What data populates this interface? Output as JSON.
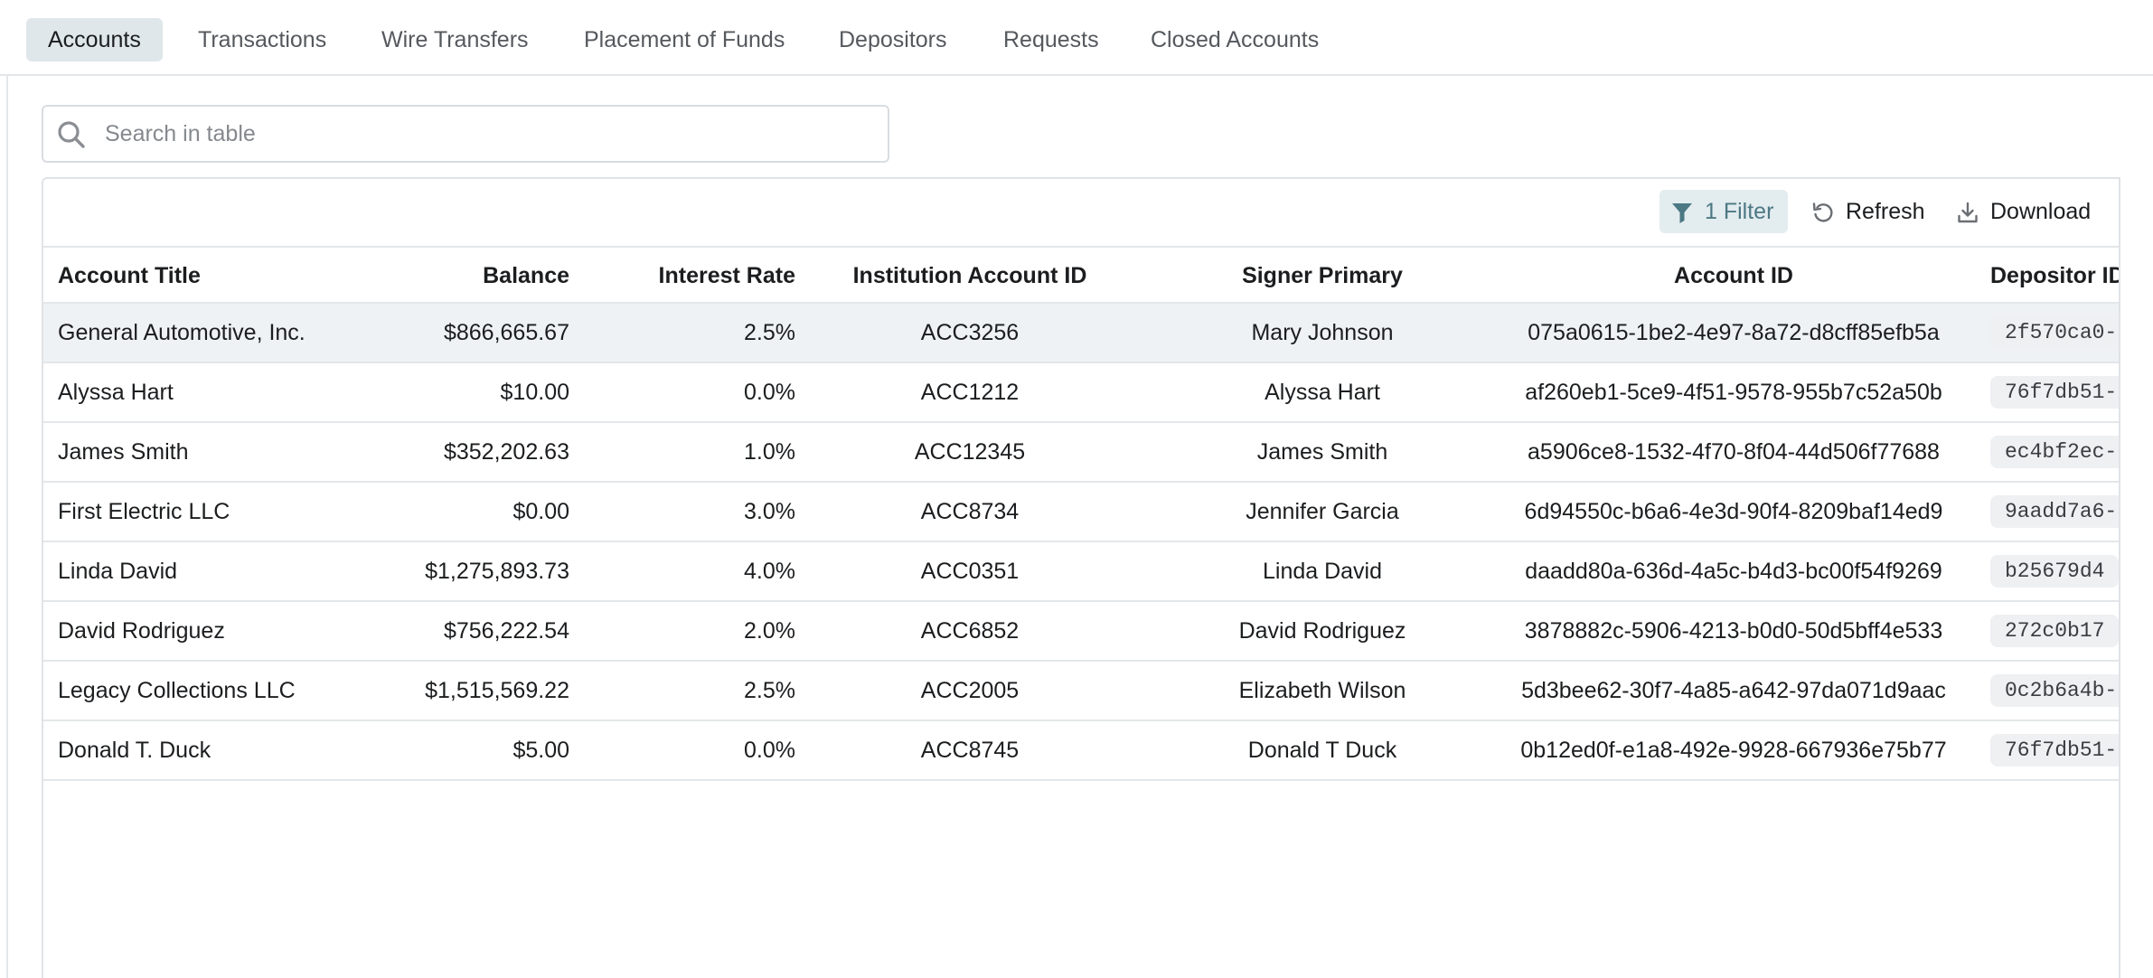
{
  "tabs": [
    {
      "label": "Accounts",
      "active": true
    },
    {
      "label": "Transactions",
      "active": false
    },
    {
      "label": "Wire Transfers",
      "active": false
    },
    {
      "label": "Placement of Funds",
      "active": false
    },
    {
      "label": "Depositors",
      "active": false
    },
    {
      "label": "Requests",
      "active": false
    },
    {
      "label": "Closed Accounts",
      "active": false
    }
  ],
  "search": {
    "placeholder": "Search in table",
    "value": "",
    "icon": "search-icon"
  },
  "toolbar": {
    "filter_label": "1 Filter",
    "refresh_label": "Refresh",
    "download_label": "Download",
    "filter_icon": "filter-icon",
    "refresh_icon": "refresh-icon",
    "download_icon": "download-icon"
  },
  "table": {
    "columns": [
      "Account Title",
      "Balance",
      "Interest Rate",
      "Institution Account ID",
      "Signer Primary",
      "Account ID",
      "Depositor ID"
    ],
    "rows": [
      {
        "title": "General Automotive, Inc.",
        "balance": "$866,665.67",
        "rate": "2.5%",
        "inst_id": "ACC3256",
        "signer": "Mary Johnson",
        "account_id": "075a0615-1be2-4e97-8a72-d8cff85efb5a",
        "depositor_id": "2f570ca0-"
      },
      {
        "title": "Alyssa Hart",
        "balance": "$10.00",
        "rate": "0.0%",
        "inst_id": "ACC1212",
        "signer": "Alyssa Hart",
        "account_id": "af260eb1-5ce9-4f51-9578-955b7c52a50b",
        "depositor_id": "76f7db51-"
      },
      {
        "title": "James Smith",
        "balance": "$352,202.63",
        "rate": "1.0%",
        "inst_id": "ACC12345",
        "signer": "James Smith",
        "account_id": "a5906ce8-1532-4f70-8f04-44d506f77688",
        "depositor_id": "ec4bf2ec-"
      },
      {
        "title": "First Electric LLC",
        "balance": "$0.00",
        "rate": "3.0%",
        "inst_id": "ACC8734",
        "signer": "Jennifer Garcia",
        "account_id": "6d94550c-b6a6-4e3d-90f4-8209baf14ed9",
        "depositor_id": "9aadd7a6-"
      },
      {
        "title": "Linda David",
        "balance": "$1,275,893.73",
        "rate": "4.0%",
        "inst_id": "ACC0351",
        "signer": "Linda David",
        "account_id": "daadd80a-636d-4a5c-b4d3-bc00f54f9269",
        "depositor_id": "b25679d4"
      },
      {
        "title": "David Rodriguez",
        "balance": "$756,222.54",
        "rate": "2.0%",
        "inst_id": "ACC6852",
        "signer": "David Rodriguez",
        "account_id": "3878882c-5906-4213-b0d0-50d5bff4e533",
        "depositor_id": "272c0b17"
      },
      {
        "title": "Legacy Collections LLC",
        "balance": "$1,515,569.22",
        "rate": "2.5%",
        "inst_id": "ACC2005",
        "signer": "Elizabeth Wilson",
        "account_id": "5d3bee62-30f7-4a85-a642-97da071d9aac",
        "depositor_id": "0c2b6a4b-"
      },
      {
        "title": "Donald T. Duck",
        "balance": "$5.00",
        "rate": "0.0%",
        "inst_id": "ACC8745",
        "signer": "Donald T Duck",
        "account_id": "0b12ed0f-e1a8-492e-9928-667936e75b77",
        "depositor_id": "76f7db51-"
      }
    ]
  },
  "colors": {
    "accent": "#4c7884",
    "active_tab_bg": "#dfe7ea",
    "highlight_row": "#eef2f4",
    "border": "#e4e7ea"
  }
}
